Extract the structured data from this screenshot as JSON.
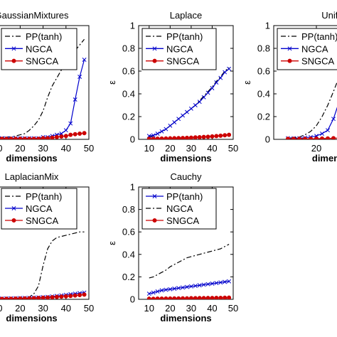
{
  "chart_data": [
    {
      "type": "line",
      "title": "GaussianMixtures",
      "xlabel": "dimensions",
      "ylabel": "",
      "xlim": [
        0,
        50
      ],
      "ylim": [
        0,
        1
      ],
      "xticks": [
        10,
        20,
        30,
        40,
        50
      ],
      "yticks": [],
      "legend": [
        "PP(tanh)",
        "NGCA",
        "SNGCA"
      ],
      "series": [
        {
          "name": "PP(tanh)",
          "color": "#000000",
          "dash": "dashdot",
          "marker": "none",
          "x": [
            0,
            2,
            4,
            6,
            8,
            10,
            12,
            14,
            16,
            18,
            20,
            22,
            24,
            26,
            28,
            30,
            32,
            34,
            36,
            38,
            40,
            42,
            44,
            46,
            48
          ],
          "y": [
            0.01,
            0.01,
            0.01,
            0.01,
            0.01,
            0.01,
            0.02,
            0.02,
            0.02,
            0.03,
            0.04,
            0.05,
            0.08,
            0.12,
            0.17,
            0.25,
            0.37,
            0.47,
            0.54,
            0.61,
            0.66,
            0.72,
            0.78,
            0.83,
            0.88
          ]
        },
        {
          "name": "NGCA",
          "color": "#0000cc",
          "dash": "solid",
          "marker": "x",
          "x": [
            0,
            2,
            4,
            6,
            8,
            10,
            12,
            14,
            16,
            18,
            20,
            22,
            24,
            26,
            28,
            30,
            32,
            34,
            36,
            38,
            40,
            42,
            44,
            46,
            48
          ],
          "y": [
            0.01,
            0.01,
            0.01,
            0.01,
            0.01,
            0.01,
            0.01,
            0.01,
            0.01,
            0.01,
            0.01,
            0.01,
            0.01,
            0.01,
            0.01,
            0.02,
            0.02,
            0.03,
            0.04,
            0.05,
            0.08,
            0.14,
            0.35,
            0.55,
            0.7
          ]
        },
        {
          "name": "SNGCA",
          "color": "#cc0000",
          "dash": "solid",
          "marker": "o",
          "x": [
            0,
            2,
            4,
            6,
            8,
            10,
            12,
            14,
            16,
            18,
            20,
            22,
            24,
            26,
            28,
            30,
            32,
            34,
            36,
            38,
            40,
            42,
            44,
            46,
            48
          ],
          "y": [
            0.005,
            0.005,
            0.005,
            0.005,
            0.005,
            0.005,
            0.005,
            0.005,
            0.005,
            0.005,
            0.005,
            0.005,
            0.005,
            0.005,
            0.005,
            0.01,
            0.01,
            0.015,
            0.02,
            0.025,
            0.03,
            0.04,
            0.045,
            0.05,
            0.055
          ]
        }
      ]
    },
    {
      "type": "line",
      "title": "Laplace",
      "xlabel": "dimensions",
      "ylabel": "ε",
      "xlim": [
        5,
        50
      ],
      "ylim": [
        0,
        1
      ],
      "xticks": [
        10,
        20,
        30,
        40,
        50
      ],
      "yticks": [
        0,
        0.2,
        0.4,
        0.6,
        0.8,
        1
      ],
      "legend": [
        "PP(tanh)",
        "NGCA",
        "SNGCA"
      ],
      "series": [
        {
          "name": "PP(tanh)",
          "color": "#000000",
          "dash": "dashdot",
          "marker": "none",
          "x": [
            10,
            12,
            14,
            16,
            18,
            20,
            22,
            24,
            26,
            28,
            30,
            32,
            34,
            36,
            38,
            40,
            42,
            44,
            46,
            48
          ],
          "y": [
            0.02,
            0.03,
            0.05,
            0.07,
            0.09,
            0.12,
            0.15,
            0.18,
            0.21,
            0.24,
            0.27,
            0.3,
            0.34,
            0.38,
            0.42,
            0.46,
            0.51,
            0.55,
            0.6,
            0.63
          ]
        },
        {
          "name": "NGCA",
          "color": "#0000cc",
          "dash": "solid",
          "marker": "x",
          "x": [
            10,
            12,
            14,
            16,
            18,
            20,
            22,
            24,
            26,
            28,
            30,
            32,
            34,
            36,
            38,
            40,
            42,
            44,
            46,
            48
          ],
          "y": [
            0.03,
            0.035,
            0.05,
            0.07,
            0.09,
            0.12,
            0.15,
            0.18,
            0.21,
            0.24,
            0.27,
            0.3,
            0.33,
            0.37,
            0.41,
            0.45,
            0.5,
            0.54,
            0.59,
            0.62
          ]
        },
        {
          "name": "SNGCA",
          "color": "#cc0000",
          "dash": "solid",
          "marker": "o",
          "x": [
            10,
            12,
            14,
            16,
            18,
            20,
            22,
            24,
            26,
            28,
            30,
            32,
            34,
            36,
            38,
            40,
            42,
            44,
            46,
            48
          ],
          "y": [
            0.005,
            0.005,
            0.006,
            0.007,
            0.008,
            0.009,
            0.01,
            0.011,
            0.012,
            0.013,
            0.015,
            0.017,
            0.019,
            0.021,
            0.023,
            0.026,
            0.029,
            0.032,
            0.036,
            0.04
          ]
        }
      ]
    },
    {
      "type": "line",
      "title": "Uniform",
      "xlabel": "dimensions",
      "ylabel": "ε",
      "xlim": [
        5,
        50
      ],
      "ylim": [
        0,
        1
      ],
      "xticks": [
        20
      ],
      "yticks": [
        0,
        0.2,
        0.4,
        0.6,
        0.8,
        1
      ],
      "legend": [
        "PP(tanh)",
        "NGCA",
        "SNGCA"
      ],
      "series": [
        {
          "name": "PP(tanh)",
          "color": "#000000",
          "dash": "dashdot",
          "marker": "none",
          "x": [
            10,
            12,
            14,
            16,
            18,
            20,
            22,
            24,
            26,
            28,
            30,
            32
          ],
          "y": [
            0.01,
            0.015,
            0.02,
            0.04,
            0.07,
            0.12,
            0.2,
            0.3,
            0.42,
            0.55,
            0.68,
            0.8
          ]
        },
        {
          "name": "NGCA",
          "color": "#0000cc",
          "dash": "solid",
          "marker": "x",
          "x": [
            10,
            12,
            14,
            16,
            18,
            20,
            22,
            24,
            26,
            28,
            30,
            32
          ],
          "y": [
            0.01,
            0.01,
            0.01,
            0.015,
            0.02,
            0.03,
            0.05,
            0.08,
            0.18,
            0.33,
            0.48,
            0.62
          ]
        },
        {
          "name": "SNGCA",
          "color": "#cc0000",
          "dash": "solid",
          "marker": "o",
          "x": [
            10,
            12,
            14,
            16,
            18,
            20,
            22,
            24,
            26,
            28,
            30,
            32
          ],
          "y": [
            0.005,
            0.005,
            0.005,
            0.005,
            0.005,
            0.006,
            0.007,
            0.008,
            0.01,
            0.012,
            0.014,
            0.016
          ]
        }
      ]
    },
    {
      "type": "line",
      "title": "LaplacianMix",
      "xlabel": "dimensions",
      "ylabel": "",
      "xlim": [
        0,
        50
      ],
      "ylim": [
        0,
        1
      ],
      "xticks": [
        10,
        20,
        30,
        40,
        50
      ],
      "yticks": [],
      "legend": [
        "PP(tanh)",
        "NGCA",
        "SNGCA"
      ],
      "series": [
        {
          "name": "PP(tanh)",
          "color": "#000000",
          "dash": "dashdot",
          "marker": "none",
          "x": [
            0,
            2,
            4,
            6,
            8,
            10,
            12,
            14,
            16,
            18,
            20,
            22,
            24,
            26,
            28,
            30,
            32,
            34,
            36,
            38,
            40,
            42,
            44,
            46,
            48
          ],
          "y": [
            0.01,
            0.01,
            0.01,
            0.01,
            0.01,
            0.01,
            0.01,
            0.01,
            0.01,
            0.01,
            0.01,
            0.01,
            0.02,
            0.05,
            0.12,
            0.3,
            0.45,
            0.52,
            0.55,
            0.56,
            0.57,
            0.58,
            0.59,
            0.6,
            0.6
          ]
        },
        {
          "name": "NGCA",
          "color": "#0000cc",
          "dash": "solid",
          "marker": "x",
          "x": [
            0,
            2,
            4,
            6,
            8,
            10,
            12,
            14,
            16,
            18,
            20,
            22,
            24,
            26,
            28,
            30,
            32,
            34,
            36,
            38,
            40,
            42,
            44,
            46,
            48
          ],
          "y": [
            0.005,
            0.005,
            0.005,
            0.005,
            0.005,
            0.006,
            0.007,
            0.008,
            0.009,
            0.01,
            0.011,
            0.012,
            0.013,
            0.015,
            0.017,
            0.019,
            0.022,
            0.026,
            0.03,
            0.035,
            0.04,
            0.045,
            0.05,
            0.055,
            0.06
          ]
        },
        {
          "name": "SNGCA",
          "color": "#cc0000",
          "dash": "solid",
          "marker": "o",
          "x": [
            0,
            2,
            4,
            6,
            8,
            10,
            12,
            14,
            16,
            18,
            20,
            22,
            24,
            26,
            28,
            30,
            32,
            34,
            36,
            38,
            40,
            42,
            44,
            46,
            48
          ],
          "y": [
            0.003,
            0.003,
            0.003,
            0.003,
            0.003,
            0.004,
            0.004,
            0.005,
            0.005,
            0.006,
            0.007,
            0.008,
            0.009,
            0.01,
            0.012,
            0.014,
            0.016,
            0.018,
            0.021,
            0.024,
            0.027,
            0.03,
            0.034,
            0.038,
            0.042
          ]
        }
      ]
    },
    {
      "type": "line",
      "title": "Cauchy",
      "xlabel": "dimensions",
      "ylabel": "ε",
      "xlim": [
        5,
        50
      ],
      "ylim": [
        0,
        1
      ],
      "xticks": [
        10,
        20,
        30,
        40,
        50
      ],
      "yticks": [
        0,
        0.2,
        0.4,
        0.6,
        0.8,
        1
      ],
      "legend": [
        "PP(tanh)",
        "NGCA",
        "SNGCA"
      ],
      "series": [
        {
          "name": "PP(tanh)",
          "color": "#0000cc",
          "dash": "solid",
          "marker": "x",
          "x": [
            10,
            12,
            14,
            16,
            18,
            20,
            22,
            24,
            26,
            28,
            30,
            32,
            34,
            36,
            38,
            40,
            42,
            44,
            46,
            48
          ],
          "y": [
            0.05,
            0.06,
            0.07,
            0.08,
            0.085,
            0.09,
            0.095,
            0.1,
            0.105,
            0.11,
            0.115,
            0.12,
            0.125,
            0.13,
            0.135,
            0.14,
            0.145,
            0.15,
            0.155,
            0.16
          ]
        },
        {
          "name": "NGCA",
          "color": "#000000",
          "dash": "dashdot",
          "marker": "none",
          "x": [
            10,
            12,
            14,
            16,
            18,
            20,
            22,
            24,
            26,
            28,
            30,
            32,
            34,
            36,
            38,
            40,
            42,
            44,
            46,
            48
          ],
          "y": [
            0.19,
            0.2,
            0.22,
            0.24,
            0.26,
            0.29,
            0.31,
            0.33,
            0.35,
            0.37,
            0.38,
            0.39,
            0.4,
            0.41,
            0.42,
            0.43,
            0.44,
            0.45,
            0.47,
            0.49
          ]
        },
        {
          "name": "SNGCA",
          "color": "#cc0000",
          "dash": "solid",
          "marker": "o",
          "x": [
            10,
            12,
            14,
            16,
            18,
            20,
            22,
            24,
            26,
            28,
            30,
            32,
            34,
            36,
            38,
            40,
            42,
            44,
            46,
            48
          ],
          "y": [
            0.005,
            0.005,
            0.006,
            0.006,
            0.007,
            0.007,
            0.008,
            0.008,
            0.009,
            0.009,
            0.01,
            0.01,
            0.011,
            0.011,
            0.012,
            0.012,
            0.013,
            0.013,
            0.014,
            0.015
          ]
        }
      ]
    }
  ]
}
